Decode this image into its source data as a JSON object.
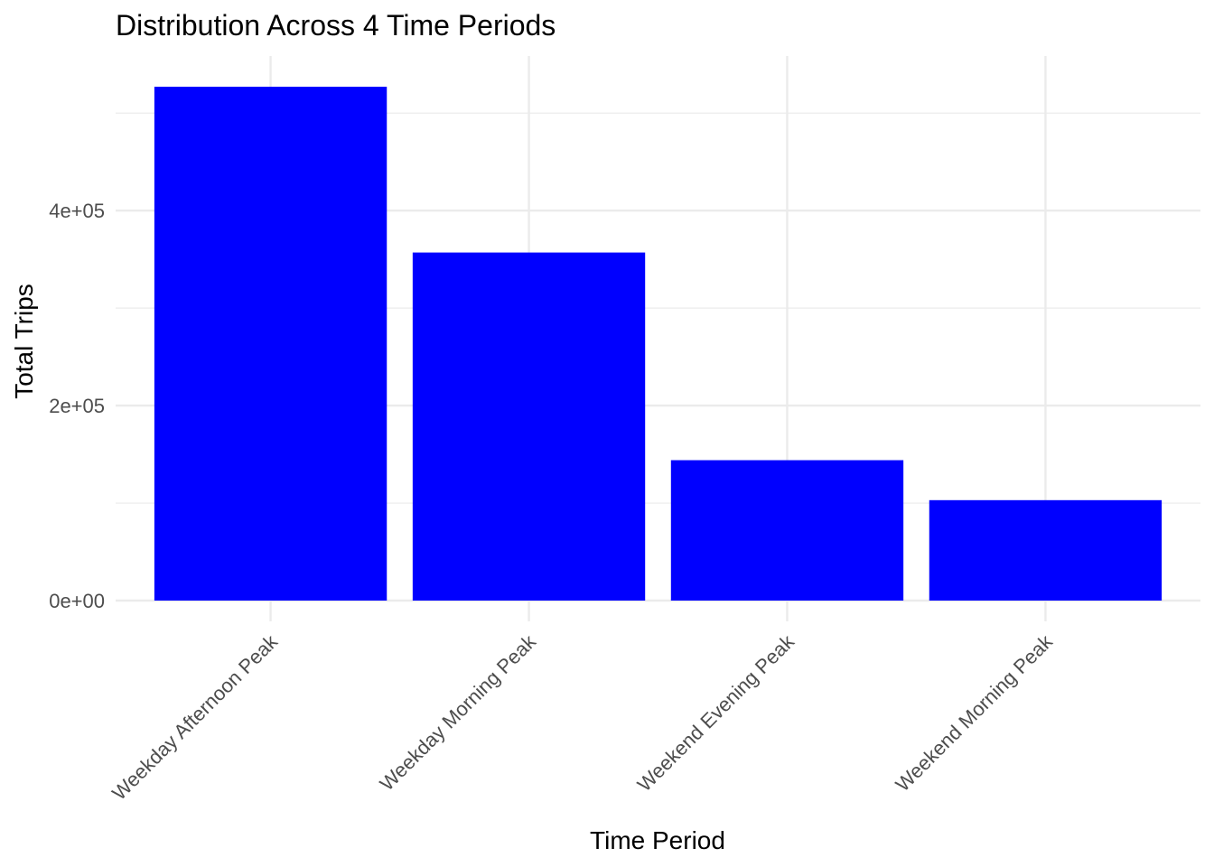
{
  "chart_data": {
    "type": "bar",
    "title": "Distribution Across 4 Time Periods",
    "xlabel": "Time Period",
    "ylabel": "Total Trips",
    "categories": [
      "Weekday Afternoon Peak",
      "Weekday Morning Peak",
      "Weekend Evening Peak",
      "Weekend Morning Peak"
    ],
    "values": [
      527000,
      357000,
      144000,
      103000
    ],
    "ylim": [
      0,
      553000
    ],
    "y_ticks": [
      0,
      200000,
      400000
    ],
    "y_tick_labels": [
      "0e+00",
      "2e+05",
      "4e+05"
    ],
    "y_minor_ticks": [
      100000,
      300000,
      500000
    ],
    "grid": true,
    "legend": "none",
    "bar_color": "#0000ff",
    "grid_color": "#ebebeb"
  }
}
